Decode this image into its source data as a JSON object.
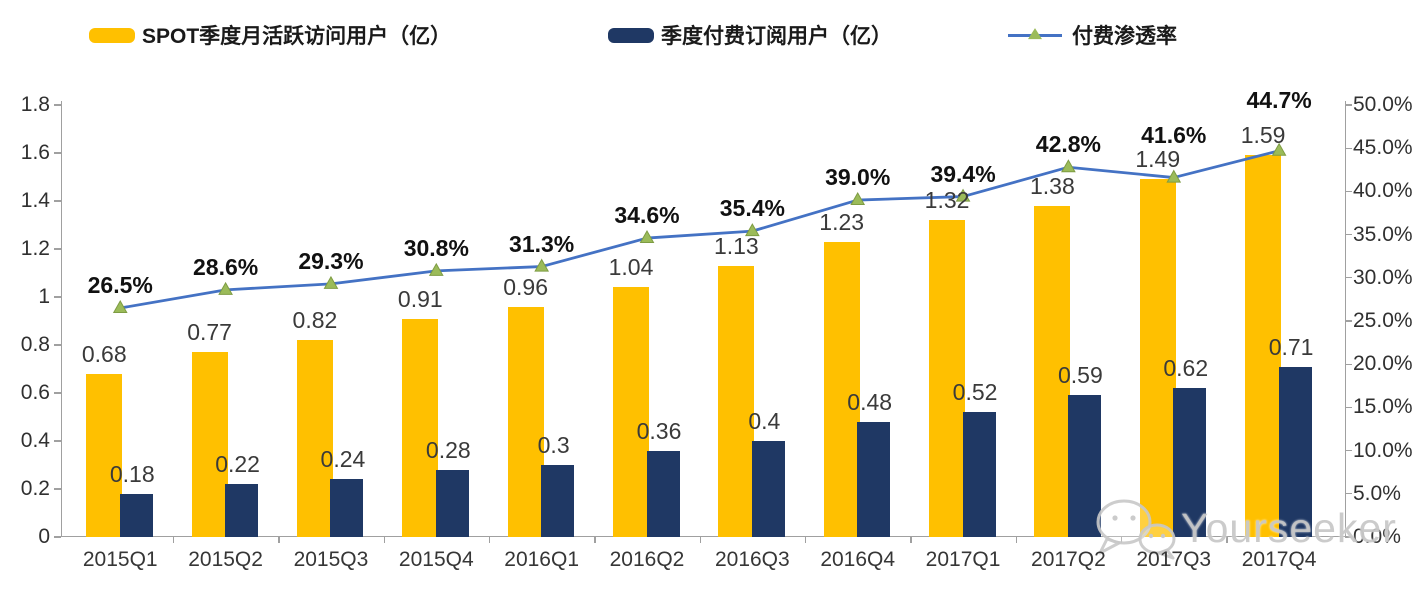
{
  "legend": {
    "items": [
      {
        "label": "SPOT季度月活跃访问用户（亿）",
        "swatch_color": "#FFC000",
        "type": "bar"
      },
      {
        "label": "季度付费订阅用户（亿）",
        "swatch_color": "#1F3864",
        "type": "bar"
      },
      {
        "label": "付费渗透率",
        "line_color": "#4472C4",
        "marker_color": "#9BBB59",
        "type": "line-triangle-marker"
      }
    ]
  },
  "watermark": {
    "icon": "wechat-icon",
    "text": "Yourseeker",
    "color": "#C4C4C4"
  },
  "chart_data": {
    "type": "combo-bar-line",
    "title": "",
    "categories": [
      "2015Q1",
      "2015Q2",
      "2015Q3",
      "2015Q4",
      "2016Q1",
      "2016Q2",
      "2016Q3",
      "2016Q4",
      "2017Q1",
      "2017Q2",
      "2017Q3",
      "2017Q4"
    ],
    "series": [
      {
        "name": "SPOT季度月活跃访问用户（亿）",
        "type": "bar",
        "axis": "left",
        "color": "#FFC000",
        "values": [
          0.68,
          0.77,
          0.82,
          0.91,
          0.96,
          1.04,
          1.13,
          1.23,
          1.32,
          1.38,
          1.49,
          1.59
        ],
        "labels": [
          "0.68",
          "0.77",
          "0.82",
          "0.91",
          "0.96",
          "1.04",
          "1.13",
          "1.23",
          "1.32",
          "1.38",
          "1.49",
          "1.59"
        ]
      },
      {
        "name": "季度付费订阅用户（亿）",
        "type": "bar",
        "axis": "left",
        "color": "#1F3864",
        "values": [
          0.18,
          0.22,
          0.24,
          0.28,
          0.3,
          0.36,
          0.4,
          0.48,
          0.52,
          0.59,
          0.62,
          0.71
        ],
        "labels": [
          "0.18",
          "0.22",
          "0.24",
          "0.28",
          "0.3",
          "0.36",
          "0.4",
          "0.48",
          "0.52",
          "0.59",
          "0.62",
          "0.71"
        ]
      },
      {
        "name": "付费渗透率",
        "type": "line",
        "axis": "right",
        "color": "#4472C4",
        "marker": "triangle",
        "marker_color": "#9BBB59",
        "values": [
          26.5,
          28.6,
          29.3,
          30.8,
          31.3,
          34.6,
          35.4,
          39.0,
          39.4,
          42.8,
          41.6,
          44.7
        ],
        "labels": [
          "26.5%",
          "28.6%",
          "29.3%",
          "30.8%",
          "31.3%",
          "34.6%",
          "35.4%",
          "39.0%",
          "39.4%",
          "42.8%",
          "41.6%",
          "44.7%"
        ]
      }
    ],
    "left_axis": {
      "min": 0,
      "max": 1.8,
      "step": 0.2,
      "tick_labels": [
        "0",
        "0.2",
        "0.4",
        "0.6",
        "0.8",
        "1",
        "1.2",
        "1.4",
        "1.6",
        "1.8"
      ]
    },
    "right_axis": {
      "min": 0,
      "max": 50,
      "step": 5,
      "unit": "%",
      "tick_labels": [
        "0.0%",
        "5.0%",
        "10.0%",
        "15.0%",
        "20.0%",
        "25.0%",
        "30.0%",
        "35.0%",
        "40.0%",
        "45.0%",
        "50.0%"
      ],
      "clipped_at_right_edge": true
    },
    "grid": false,
    "legend_position": "top"
  }
}
